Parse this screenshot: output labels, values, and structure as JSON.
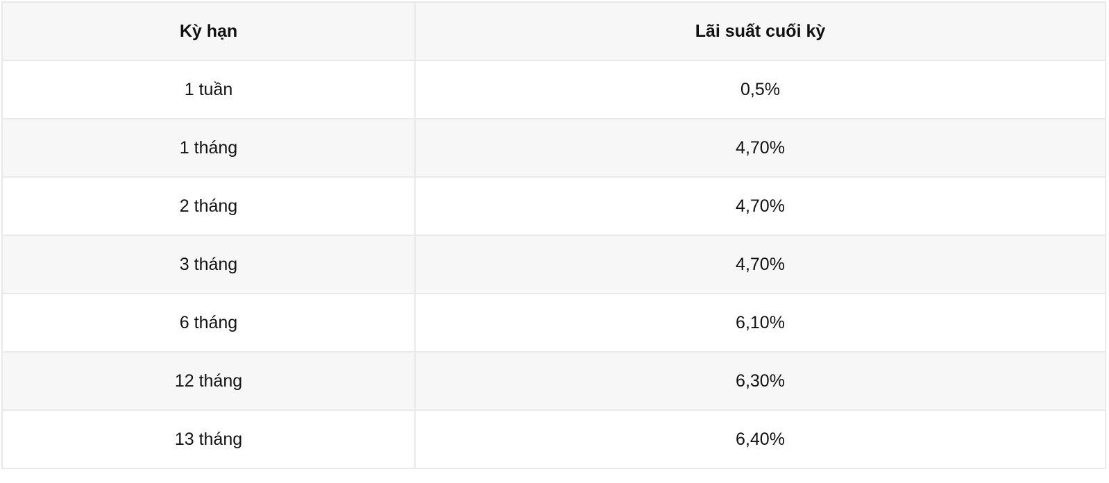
{
  "table": {
    "headers": [
      "Kỳ hạn",
      "Lãi suất cuối kỳ"
    ],
    "rows": [
      [
        "1 tuần",
        "0,5%"
      ],
      [
        "1 tháng",
        "4,70%"
      ],
      [
        "2 tháng",
        "4,70%"
      ],
      [
        "3 tháng",
        "4,70%"
      ],
      [
        "6 tháng",
        "6,10%"
      ],
      [
        "12 tháng",
        "6,30%"
      ],
      [
        "13 tháng",
        "6,40%"
      ]
    ]
  }
}
